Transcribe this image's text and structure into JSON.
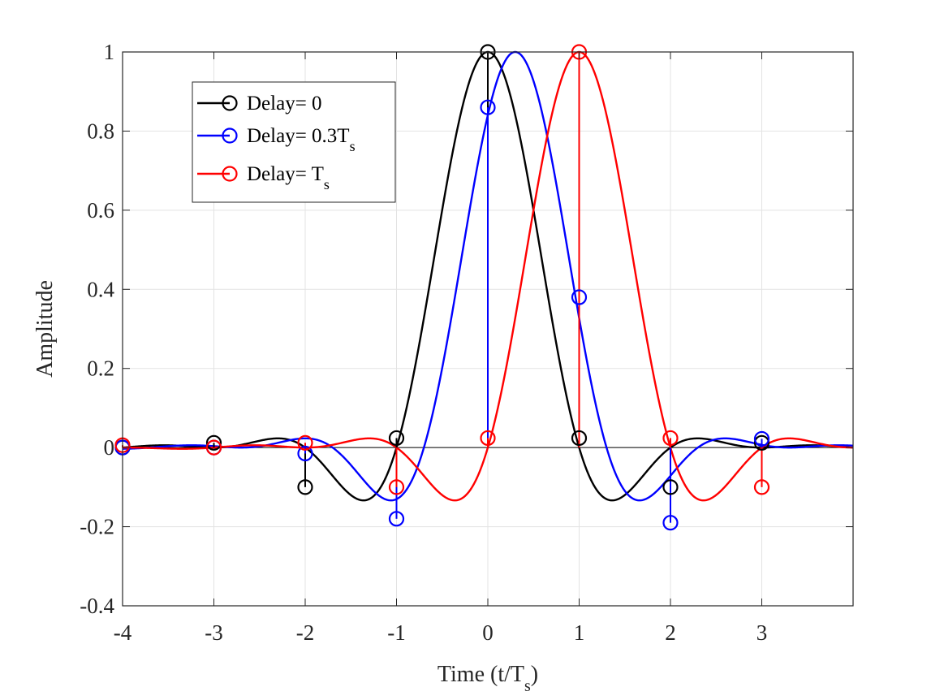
{
  "chart_data": {
    "type": "line",
    "title": "",
    "xlabel": {
      "main": "Time (t/T",
      "sub": "s",
      "close": ")"
    },
    "ylabel": "Amplitude",
    "xlim": [
      -4,
      4
    ],
    "ylim": [
      -0.4,
      1
    ],
    "grid": true,
    "legend_placement": "top-left",
    "xticks": [
      -4,
      -3,
      -2,
      -1,
      0,
      1,
      2,
      3
    ],
    "xtick_labels": [
      "-4",
      "-3",
      "-2",
      "-1",
      "0",
      "1",
      "2",
      "3"
    ],
    "yticks": [
      -0.4,
      -0.2,
      0,
      0.2,
      0.4,
      0.6,
      0.8,
      1
    ],
    "ytick_labels": [
      "-0.4",
      "-0.2",
      "0",
      "0.2",
      "0.4",
      "0.6",
      "0.8",
      "1"
    ],
    "pulse": {
      "shape": "raised-cosine",
      "rolloff": 0.5
    },
    "series": [
      {
        "name": "Delay= 0",
        "legend_main": "Delay= 0",
        "legend_sub": "",
        "delay": 0,
        "color": "#000000",
        "samples": [
          {
            "t": -4,
            "v": 0.0
          },
          {
            "t": -3,
            "v": 0.012
          },
          {
            "t": -2,
            "v": -0.1
          },
          {
            "t": -1,
            "v": 0.024
          },
          {
            "t": 0,
            "v": 1.0
          },
          {
            "t": 1,
            "v": 0.024
          },
          {
            "t": 2,
            "v": -0.1
          },
          {
            "t": 3,
            "v": 0.012
          }
        ]
      },
      {
        "name": "Delay= 0.3Ts",
        "legend_main": "Delay= 0.3T",
        "legend_sub": "s",
        "delay": 0.3,
        "color": "#0000ff",
        "samples": [
          {
            "t": -4,
            "v": 0.0
          },
          {
            "t": -3,
            "v": 0.0
          },
          {
            "t": -2,
            "v": -0.015
          },
          {
            "t": -1,
            "v": -0.18
          },
          {
            "t": 0,
            "v": 0.86
          },
          {
            "t": 1,
            "v": 0.38
          },
          {
            "t": 2,
            "v": -0.19
          },
          {
            "t": 3,
            "v": 0.022
          }
        ]
      },
      {
        "name": "Delay= Ts",
        "legend_main": "Delay= T",
        "legend_sub": "s",
        "delay": 1,
        "color": "#ff0000",
        "samples": [
          {
            "t": -4,
            "v": 0.006
          },
          {
            "t": -3,
            "v": 0.0
          },
          {
            "t": -2,
            "v": 0.012
          },
          {
            "t": -1,
            "v": -0.1
          },
          {
            "t": 0,
            "v": 0.024
          },
          {
            "t": 1,
            "v": 1.0
          },
          {
            "t": 2,
            "v": 0.024
          },
          {
            "t": 3,
            "v": -0.1
          }
        ]
      }
    ]
  }
}
